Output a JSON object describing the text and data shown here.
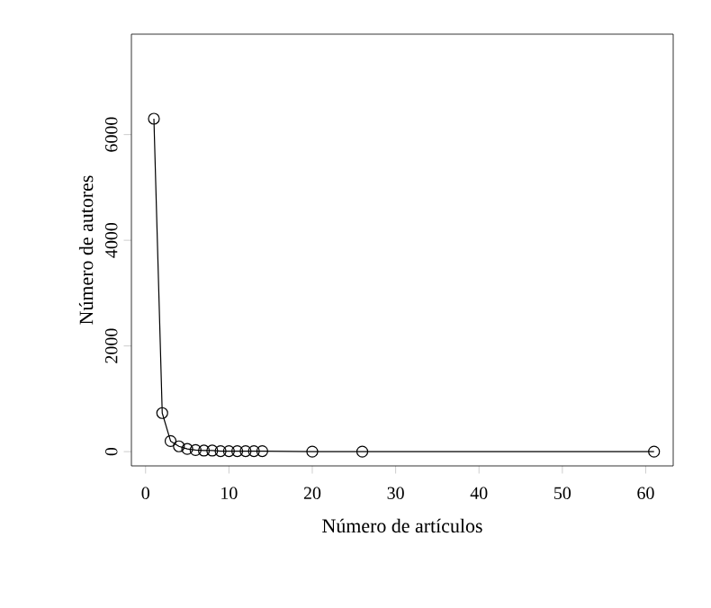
{
  "chart_data": {
    "type": "line",
    "xlabel": "Número de artículos",
    "ylabel": "Número de autores",
    "marker": "circle",
    "line_style": "solid",
    "grid": false,
    "series": [
      {
        "color": "#000000",
        "x": [
          1,
          2,
          3,
          4,
          5,
          6,
          7,
          8,
          9,
          10,
          11,
          12,
          13,
          14,
          20,
          26,
          61
        ],
        "values": [
          6300,
          730,
          200,
          100,
          50,
          30,
          20,
          20,
          10,
          10,
          10,
          10,
          10,
          10,
          0,
          0,
          0
        ]
      }
    ],
    "xlim": [
      -1.7,
      63.3
    ],
    "ylim": [
      -270,
      7900
    ],
    "xticks": [
      0,
      10,
      20,
      30,
      40,
      50,
      60
    ],
    "yticks": [
      0,
      2000,
      4000,
      6000
    ]
  }
}
